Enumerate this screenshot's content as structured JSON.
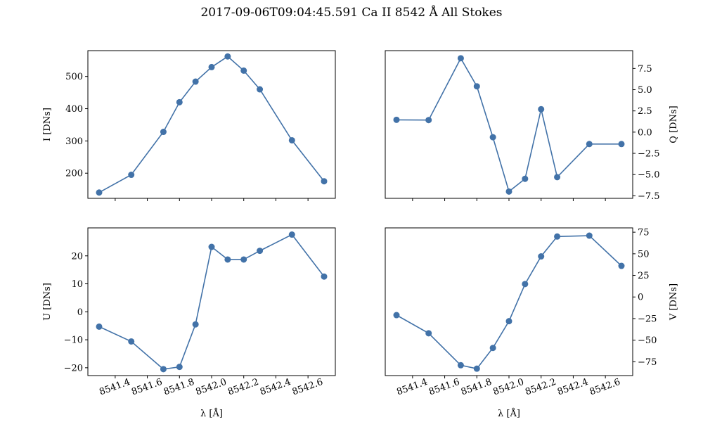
{
  "figure": {
    "title": "2017-09-06T09:04:45.591 Ca II 8542 Å All  Stokes",
    "line_color": "#4272a8"
  },
  "chart_data": [
    {
      "type": "line",
      "panel": "top-left",
      "title": "",
      "xlabel": "",
      "ylabel": "I [DNs]",
      "ylabel_side": "left",
      "x": [
        8541.3,
        8541.5,
        8541.7,
        8541.8,
        8541.9,
        8542.0,
        8542.1,
        8542.2,
        8542.3,
        8542.5,
        8542.7
      ],
      "values": [
        140,
        195,
        328,
        420,
        484,
        529,
        562,
        518,
        460,
        302,
        175
      ],
      "yticks": [
        200,
        300,
        400,
        500
      ],
      "ylim": [
        122,
        580
      ],
      "xlim": [
        8541.23,
        8542.77
      ],
      "xticks": [
        8541.4,
        8541.6,
        8541.8,
        8542.0,
        8542.2,
        8542.4,
        8542.6
      ],
      "show_xticklabels": false,
      "marker": "circle",
      "grid": false
    },
    {
      "type": "line",
      "panel": "top-right",
      "title": "",
      "xlabel": "",
      "ylabel": "Q [DNs]",
      "ylabel_side": "right",
      "x": [
        8541.3,
        8541.5,
        8541.7,
        8541.8,
        8541.9,
        8542.0,
        8542.1,
        8542.2,
        8542.3,
        8542.5,
        8542.7
      ],
      "values": [
        1.45,
        1.42,
        8.7,
        5.4,
        -0.6,
        -7.0,
        -5.5,
        2.7,
        -5.3,
        -1.4,
        -1.4
      ],
      "yticks": [
        -7.5,
        -5.0,
        -2.5,
        0.0,
        2.5,
        5.0,
        7.5
      ],
      "ytick_labels": [
        "−7.5",
        "−5.0",
        "−2.5",
        "0.0",
        "2.5",
        "5.0",
        "7.5"
      ],
      "ylim": [
        -7.8,
        9.6
      ],
      "xlim": [
        8541.23,
        8542.77
      ],
      "xticks": [
        8541.4,
        8541.6,
        8541.8,
        8542.0,
        8542.2,
        8542.4,
        8542.6
      ],
      "show_xticklabels": false,
      "marker": "circle",
      "grid": false
    },
    {
      "type": "line",
      "panel": "bottom-left",
      "title": "",
      "xlabel": "λ [Å]",
      "ylabel": "U [DNs]",
      "ylabel_side": "left",
      "x": [
        8541.3,
        8541.5,
        8541.7,
        8541.8,
        8541.9,
        8542.0,
        8542.1,
        8542.2,
        8542.3,
        8542.5,
        8542.7
      ],
      "values": [
        -5.3,
        -10.6,
        -20.5,
        -19.7,
        -4.5,
        23.2,
        18.7,
        18.7,
        21.8,
        27.6,
        12.6
      ],
      "yticks": [
        -20,
        -10,
        0,
        10,
        20
      ],
      "ytick_labels": [
        "−20",
        "−10",
        "0",
        "10",
        "20"
      ],
      "ylim": [
        -22.8,
        30.0
      ],
      "xlim": [
        8541.23,
        8542.77
      ],
      "xticks": [
        8541.4,
        8541.6,
        8541.8,
        8542.0,
        8542.2,
        8542.4,
        8542.6
      ],
      "xtick_labels": [
        "8541.4",
        "8541.6",
        "8541.8",
        "8542.0",
        "8542.2",
        "8542.4",
        "8542.6"
      ],
      "show_xticklabels": true,
      "marker": "circle",
      "grid": false
    },
    {
      "type": "line",
      "panel": "bottom-right",
      "title": "",
      "xlabel": "λ [Å]",
      "ylabel": "V [DNs]",
      "ylabel_side": "right",
      "x": [
        8541.3,
        8541.5,
        8541.7,
        8541.8,
        8541.9,
        8542.0,
        8542.1,
        8542.2,
        8542.3,
        8542.5,
        8542.7
      ],
      "values": [
        -21,
        -42,
        -79,
        -83,
        -59,
        -28,
        15,
        47,
        70,
        71,
        36
      ],
      "yticks": [
        -75,
        -50,
        -25,
        0,
        25,
        50,
        75
      ],
      "ytick_labels": [
        "−75",
        "−50",
        "−25",
        "0",
        "25",
        "50",
        "75"
      ],
      "ylim": [
        -91,
        80
      ],
      "xlim": [
        8541.23,
        8542.77
      ],
      "xticks": [
        8541.4,
        8541.6,
        8541.8,
        8542.0,
        8542.2,
        8542.4,
        8542.6
      ],
      "xtick_labels": [
        "8541.4",
        "8541.6",
        "8541.8",
        "8542.0",
        "8542.2",
        "8542.4",
        "8542.6"
      ],
      "show_xticklabels": true,
      "marker": "circle",
      "grid": false
    }
  ]
}
